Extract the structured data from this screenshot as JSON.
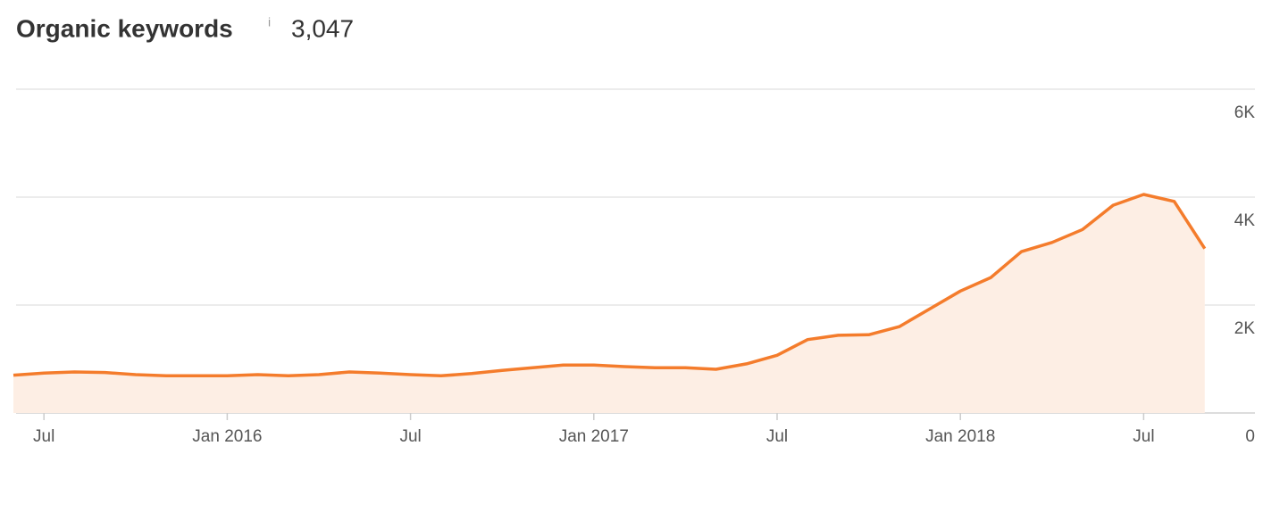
{
  "chart_data": {
    "type": "area",
    "title": "Organic keywords",
    "title_icon": "i",
    "summary_value": "3,047",
    "color": "#f47c2c",
    "fill_color": "#fdeee4",
    "grid": true,
    "x": [
      "2015-06",
      "2015-07",
      "2015-08",
      "2015-09",
      "2015-10",
      "2015-11",
      "2015-12",
      "2016-01",
      "2016-02",
      "2016-03",
      "2016-04",
      "2016-05",
      "2016-06",
      "2016-07",
      "2016-08",
      "2016-09",
      "2016-10",
      "2016-11",
      "2016-12",
      "2017-01",
      "2017-02",
      "2017-03",
      "2017-04",
      "2017-05",
      "2017-06",
      "2017-07",
      "2017-08",
      "2017-09",
      "2017-10",
      "2017-11",
      "2017-12",
      "2018-01",
      "2018-02",
      "2018-03",
      "2018-04",
      "2018-05",
      "2018-06",
      "2018-07",
      "2018-08",
      "2018-09"
    ],
    "values": [
      700,
      740,
      760,
      750,
      710,
      690,
      690,
      690,
      710,
      690,
      710,
      760,
      740,
      710,
      690,
      730,
      790,
      840,
      890,
      890,
      860,
      840,
      840,
      810,
      910,
      1070,
      1360,
      1440,
      1450,
      1600,
      1930,
      2260,
      2510,
      2990,
      3160,
      3400,
      3850,
      4050,
      3920,
      3047
    ],
    "xlim": [
      "2015-06",
      "2018-10"
    ],
    "xticks": [
      {
        "value": "2015-07",
        "label": "Jul"
      },
      {
        "value": "2016-01",
        "label": "Jan 2016"
      },
      {
        "value": "2016-07",
        "label": "Jul"
      },
      {
        "value": "2017-01",
        "label": "Jan 2017"
      },
      {
        "value": "2017-07",
        "label": "Jul"
      },
      {
        "value": "2018-01",
        "label": "Jan 2018"
      },
      {
        "value": "2018-07",
        "label": "Jul"
      }
    ],
    "ylim": [
      0,
      6000
    ],
    "yticks": [
      0,
      {
        "value": 2000,
        "label": "2K"
      },
      {
        "value": 4000,
        "label": "4K"
      },
      {
        "value": 6000,
        "label": "6K"
      }
    ]
  }
}
